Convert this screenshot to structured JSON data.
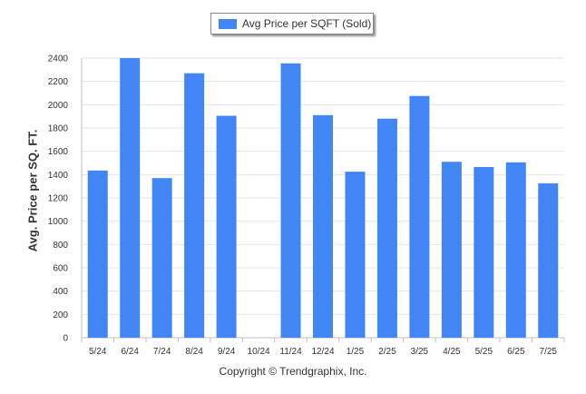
{
  "chart_data": {
    "type": "bar",
    "categories": [
      "5/24",
      "6/24",
      "7/24",
      "8/24",
      "9/24",
      "10/24",
      "11/24",
      "12/24",
      "1/25",
      "2/25",
      "3/25",
      "4/25",
      "5/25",
      "6/25",
      "7/25"
    ],
    "series": [
      {
        "name": "Avg Price per SQFT (Sold)",
        "color": "#4285f4",
        "values": [
          1435,
          2400,
          1370,
          2270,
          1905,
          0,
          2355,
          1910,
          1425,
          1880,
          2075,
          1510,
          1465,
          1505,
          1325
        ]
      }
    ],
    "ylabel": "Avg. Price per SQ. FT.",
    "xlabel": "",
    "ylim": [
      0,
      2400
    ],
    "yticks": [
      0,
      200,
      400,
      600,
      800,
      1000,
      1200,
      1400,
      1600,
      1800,
      2000,
      2200,
      2400
    ],
    "grid": true,
    "legend_position": "top-center"
  },
  "legend": {
    "label": "Avg Price per SQFT (Sold)"
  },
  "footer": {
    "copyright": "Copyright © Trendgraphix, Inc."
  }
}
